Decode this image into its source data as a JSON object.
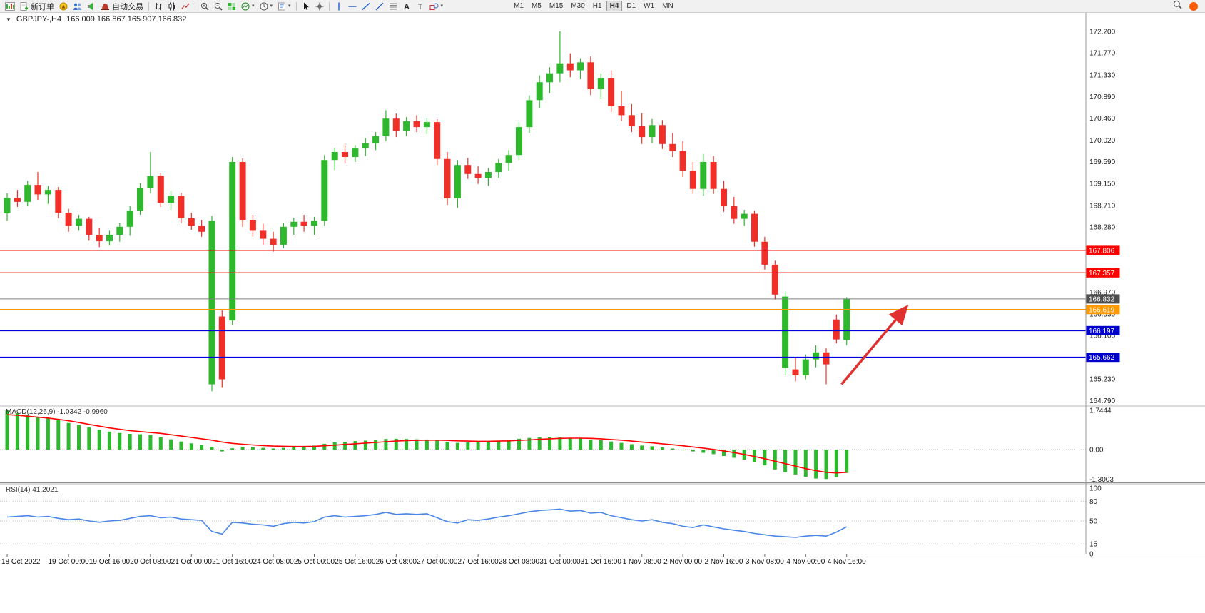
{
  "toolbar": {
    "buttons": [
      {
        "name": "charts-profile",
        "icon": "chart-icon",
        "label": ""
      },
      {
        "name": "new-order",
        "icon": "new-order-icon",
        "label": "新订单"
      },
      {
        "name": "navigator",
        "icon": "compass-icon",
        "label": ""
      },
      {
        "name": "market-watch",
        "icon": "users-icon",
        "label": ""
      },
      {
        "name": "terminal",
        "icon": "speaker-icon",
        "label": ""
      },
      {
        "name": "auto-trading",
        "icon": "auto-trading-icon",
        "label": "自动交易"
      },
      {
        "name": "sep"
      },
      {
        "name": "bar-chart-mode",
        "icon": "bars-icon",
        "label": ""
      },
      {
        "name": "candle-chart-mode",
        "icon": "candles-icon",
        "label": ""
      },
      {
        "name": "line-chart-mode",
        "icon": "line-chart-icon",
        "label": ""
      },
      {
        "name": "sep"
      },
      {
        "name": "zoom-in",
        "icon": "zoom-in-icon",
        "label": ""
      },
      {
        "name": "zoom-out",
        "icon": "zoom-out-icon",
        "label": ""
      },
      {
        "name": "tile-windows",
        "icon": "tile-icon",
        "label": ""
      },
      {
        "name": "indicators",
        "icon": "indicators-icon",
        "label": "",
        "caret": true
      },
      {
        "name": "periods",
        "icon": "clock-icon",
        "label": "",
        "caret": true
      },
      {
        "name": "templates",
        "icon": "template-icon",
        "label": "",
        "caret": true
      },
      {
        "name": "sep"
      },
      {
        "name": "cursor",
        "icon": "cursor-icon",
        "label": ""
      },
      {
        "name": "crosshair",
        "icon": "crosshair-icon",
        "label": ""
      },
      {
        "name": "sep"
      },
      {
        "name": "vertical-line",
        "icon": "vline-icon",
        "label": ""
      },
      {
        "name": "horizontal-line",
        "icon": "hline-icon",
        "label": ""
      },
      {
        "name": "trendline",
        "icon": "trendline-icon",
        "label": ""
      },
      {
        "name": "equidistant-channel",
        "icon": "channel-icon",
        "label": ""
      },
      {
        "name": "fibonacci",
        "icon": "fibo-icon",
        "label": ""
      },
      {
        "name": "text",
        "icon": "text-a-icon",
        "label": ""
      },
      {
        "name": "text-label",
        "icon": "text-t-icon",
        "label": ""
      },
      {
        "name": "arrows-shapes",
        "icon": "shapes-icon",
        "label": "",
        "caret": true
      }
    ],
    "timeframes": [
      {
        "label": "M1"
      },
      {
        "label": "M5"
      },
      {
        "label": "M15"
      },
      {
        "label": "M30"
      },
      {
        "label": "H1"
      },
      {
        "label": "H4",
        "active": true
      },
      {
        "label": "D1"
      },
      {
        "label": "W1"
      },
      {
        "label": "MN"
      }
    ],
    "notification_color": "#ff5a00"
  },
  "chart": {
    "symbol_period": "GBPJPY-,H4",
    "ohlc": "166.009 166.867 165.907 166.832",
    "macd_label": "MACD(12,26,9) -1.0342 -0.9960",
    "rsi_label": "RSI(14) 41.2021"
  },
  "chart_data": [
    {
      "type": "candlestick",
      "title": "GBPJPY-,H4",
      "timeframe": "H4",
      "current_ohlc": {
        "open": 166.009,
        "high": 166.867,
        "low": 165.907,
        "close": 166.832
      },
      "ylim": [
        164.62,
        172.57
      ],
      "colors": {
        "bull": "#2eb82e",
        "bear": "#f03028"
      },
      "y_ticks": [
        "172.200",
        "171.770",
        "171.330",
        "170.890",
        "170.460",
        "170.020",
        "169.590",
        "169.150",
        "168.710",
        "168.280",
        "167.840",
        "167.400",
        "166.970",
        "166.530",
        "166.100",
        "165.670",
        "165.230",
        "164.790"
      ],
      "x_tick_labels": [
        {
          "index": 0,
          "label": "18 Oct 2022"
        },
        {
          "index": 6,
          "label": "19 Oct 00:00"
        },
        {
          "index": 10,
          "label": "19 Oct 16:00"
        },
        {
          "index": 14,
          "label": "20 Oct 08:00"
        },
        {
          "index": 18,
          "label": "21 Oct 00:00"
        },
        {
          "index": 22,
          "label": "21 Oct 16:00"
        },
        {
          "index": 26,
          "label": "24 Oct 08:00"
        },
        {
          "index": 30,
          "label": "25 Oct 00:00"
        },
        {
          "index": 34,
          "label": "25 Oct 16:00"
        },
        {
          "index": 38,
          "label": "26 Oct 08:00"
        },
        {
          "index": 42,
          "label": "27 Oct 00:00"
        },
        {
          "index": 46,
          "label": "27 Oct 16:00"
        },
        {
          "index": 50,
          "label": "28 Oct 08:00"
        },
        {
          "index": 54,
          "label": "31 Oct 00:00"
        },
        {
          "index": 58,
          "label": "31 Oct 16:00"
        },
        {
          "index": 62,
          "label": "1 Nov 08:00"
        },
        {
          "index": 66,
          "label": "2 Nov 00:00"
        },
        {
          "index": 70,
          "label": "2 Nov 16:00"
        },
        {
          "index": 74,
          "label": "3 Nov 08:00"
        },
        {
          "index": 78,
          "label": "4 Nov 00:00"
        },
        {
          "index": 82,
          "label": "4 Nov 16:00"
        }
      ],
      "candles": [
        [
          168.55,
          168.95,
          168.4,
          168.86
        ],
        [
          168.86,
          169.02,
          168.68,
          168.78
        ],
        [
          168.78,
          169.2,
          168.7,
          169.12
        ],
        [
          169.12,
          169.38,
          168.82,
          168.93
        ],
        [
          168.93,
          169.1,
          168.74,
          169.02
        ],
        [
          169.02,
          169.08,
          168.45,
          168.56
        ],
        [
          168.56,
          168.64,
          168.18,
          168.3
        ],
        [
          168.3,
          168.52,
          168.2,
          168.44
        ],
        [
          168.44,
          168.48,
          168.0,
          168.12
        ],
        [
          168.12,
          168.25,
          167.87,
          167.99
        ],
        [
          167.99,
          168.2,
          167.9,
          168.12
        ],
        [
          168.12,
          168.36,
          167.98,
          168.28
        ],
        [
          168.28,
          168.7,
          168.1,
          168.6
        ],
        [
          168.6,
          169.15,
          168.52,
          169.05
        ],
        [
          169.05,
          169.78,
          168.95,
          169.3
        ],
        [
          169.3,
          169.36,
          168.68,
          168.76
        ],
        [
          168.76,
          169.0,
          168.62,
          168.9
        ],
        [
          168.9,
          168.96,
          168.35,
          168.45
        ],
        [
          168.45,
          168.56,
          168.22,
          168.3
        ],
        [
          168.3,
          168.42,
          168.08,
          168.18
        ],
        [
          165.12,
          168.5,
          164.98,
          168.4
        ],
        [
          166.48,
          166.6,
          165.05,
          165.22
        ],
        [
          166.4,
          169.68,
          166.3,
          169.58
        ],
        [
          169.58,
          169.65,
          168.28,
          168.42
        ],
        [
          168.42,
          168.52,
          168.08,
          168.2
        ],
        [
          168.2,
          168.34,
          167.92,
          168.04
        ],
        [
          168.04,
          168.18,
          167.78,
          167.92
        ],
        [
          167.92,
          168.36,
          167.85,
          168.28
        ],
        [
          168.28,
          168.46,
          168.12,
          168.38
        ],
        [
          168.38,
          168.52,
          168.18,
          168.3
        ],
        [
          168.3,
          168.48,
          168.12,
          168.4
        ],
        [
          168.4,
          169.72,
          168.3,
          169.62
        ],
        [
          169.62,
          169.86,
          169.42,
          169.78
        ],
        [
          169.78,
          169.95,
          169.55,
          169.68
        ],
        [
          169.68,
          169.92,
          169.58,
          169.85
        ],
        [
          169.85,
          170.06,
          169.7,
          169.96
        ],
        [
          169.96,
          170.18,
          169.82,
          170.1
        ],
        [
          170.1,
          170.62,
          170.0,
          170.45
        ],
        [
          170.45,
          170.55,
          170.08,
          170.2
        ],
        [
          170.2,
          170.48,
          170.1,
          170.4
        ],
        [
          170.4,
          170.52,
          170.18,
          170.28
        ],
        [
          170.28,
          170.46,
          170.14,
          170.38
        ],
        [
          170.38,
          170.44,
          169.52,
          169.64
        ],
        [
          169.64,
          169.78,
          168.72,
          168.85
        ],
        [
          168.85,
          169.62,
          168.66,
          169.52
        ],
        [
          169.52,
          169.66,
          169.24,
          169.34
        ],
        [
          169.34,
          169.5,
          169.14,
          169.26
        ],
        [
          169.26,
          169.46,
          169.1,
          169.38
        ],
        [
          169.38,
          169.64,
          169.26,
          169.56
        ],
        [
          169.56,
          169.82,
          169.4,
          169.72
        ],
        [
          169.72,
          170.38,
          169.62,
          170.28
        ],
        [
          170.28,
          170.92,
          170.16,
          170.82
        ],
        [
          170.82,
          171.32,
          170.66,
          171.18
        ],
        [
          171.18,
          171.48,
          170.96,
          171.36
        ],
        [
          171.36,
          172.2,
          171.18,
          171.56
        ],
        [
          171.56,
          171.76,
          171.28,
          171.42
        ],
        [
          171.42,
          171.66,
          171.24,
          171.58
        ],
        [
          171.58,
          171.7,
          170.92,
          171.04
        ],
        [
          171.04,
          171.36,
          170.84,
          171.26
        ],
        [
          171.26,
          171.42,
          170.58,
          170.7
        ],
        [
          170.7,
          171.0,
          170.4,
          170.52
        ],
        [
          170.52,
          170.74,
          170.18,
          170.3
        ],
        [
          170.3,
          170.56,
          169.94,
          170.08
        ],
        [
          170.08,
          170.44,
          169.96,
          170.32
        ],
        [
          170.32,
          170.42,
          169.84,
          169.94
        ],
        [
          169.94,
          170.16,
          169.68,
          169.8
        ],
        [
          169.8,
          170.0,
          169.28,
          169.4
        ],
        [
          169.4,
          169.58,
          168.94,
          169.04
        ],
        [
          169.04,
          169.74,
          168.9,
          169.58
        ],
        [
          169.58,
          169.7,
          168.94,
          169.04
        ],
        [
          169.04,
          169.2,
          168.58,
          168.7
        ],
        [
          168.7,
          168.88,
          168.34,
          168.44
        ],
        [
          168.44,
          168.62,
          168.3,
          168.54
        ],
        [
          168.54,
          168.6,
          167.88,
          167.98
        ],
        [
          167.98,
          168.08,
          167.42,
          167.52
        ],
        [
          167.52,
          167.6,
          166.82,
          166.92
        ],
        [
          165.45,
          166.98,
          165.3,
          166.88
        ],
        [
          165.42,
          165.66,
          165.18,
          165.3
        ],
        [
          165.3,
          165.72,
          165.22,
          165.62
        ],
        [
          165.62,
          165.9,
          165.46,
          165.76
        ],
        [
          165.76,
          165.84,
          165.12,
          165.52
        ],
        [
          166.42,
          166.52,
          165.94,
          166.02
        ],
        [
          166.009,
          166.867,
          165.907,
          166.832
        ]
      ],
      "hlines": [
        {
          "price": 167.806,
          "color": "#ff0000",
          "width": 1.3,
          "label": "167.806",
          "label_bg": "#ff0000"
        },
        {
          "price": 167.357,
          "color": "#ff0000",
          "width": 1.3,
          "label": "167.357",
          "label_bg": "#ff0000"
        },
        {
          "price": 166.619,
          "color": "#ff9900",
          "width": 1.6,
          "label": "166.619",
          "label_bg": "#ff9900"
        },
        {
          "price": 166.197,
          "color": "#0000dd",
          "width": 1.6,
          "label": "166.197",
          "label_bg": "#0000cc"
        },
        {
          "price": 165.662,
          "color": "#0000dd",
          "width": 1.6,
          "label": "165.662",
          "label_bg": "#0000cc"
        },
        {
          "price": 166.832,
          "color": "#808080",
          "width": 1,
          "label": "166.832",
          "label_bg": "#4d4d4d"
        }
      ],
      "arrow": {
        "from_index": 81.5,
        "from_price": 165.12,
        "to_index": 87.8,
        "to_price": 166.66,
        "color": "#e03030",
        "width": 3.5
      }
    },
    {
      "type": "bar",
      "title": "MACD(12,26,9)",
      "value_main": -1.0342,
      "value_signal": -0.996,
      "ylim": [
        -1.45,
        1.9
      ],
      "y_ticks": [
        "1.7444",
        "0.00",
        "-1.3003"
      ],
      "hist_color": "#2eb82e",
      "signal_color": "#ff0000",
      "histogram": [
        1.74,
        1.62,
        1.52,
        1.46,
        1.4,
        1.3,
        1.18,
        1.1,
        0.98,
        0.88,
        0.8,
        0.74,
        0.7,
        0.68,
        0.64,
        0.55,
        0.46,
        0.36,
        0.28,
        0.2,
        0.12,
        -0.08,
        0.06,
        0.12,
        0.1,
        0.08,
        0.05,
        0.08,
        0.12,
        0.15,
        0.18,
        0.26,
        0.32,
        0.35,
        0.38,
        0.4,
        0.43,
        0.47,
        0.48,
        0.47,
        0.46,
        0.45,
        0.42,
        0.35,
        0.3,
        0.32,
        0.34,
        0.36,
        0.4,
        0.44,
        0.48,
        0.52,
        0.55,
        0.56,
        0.55,
        0.52,
        0.5,
        0.45,
        0.42,
        0.36,
        0.3,
        0.24,
        0.18,
        0.15,
        0.1,
        0.05,
        -0.02,
        -0.08,
        -0.14,
        -0.2,
        -0.28,
        -0.36,
        -0.44,
        -0.56,
        -0.7,
        -0.88,
        -1.0,
        -1.1,
        -1.2,
        -1.28,
        -1.3,
        -1.22,
        -1.03
      ],
      "signal": [
        1.55,
        1.52,
        1.48,
        1.44,
        1.4,
        1.34,
        1.28,
        1.2,
        1.12,
        1.04,
        0.96,
        0.9,
        0.84,
        0.8,
        0.76,
        0.72,
        0.66,
        0.6,
        0.54,
        0.48,
        0.42,
        0.34,
        0.28,
        0.24,
        0.21,
        0.18,
        0.16,
        0.15,
        0.14,
        0.14,
        0.15,
        0.17,
        0.2,
        0.23,
        0.26,
        0.29,
        0.32,
        0.35,
        0.38,
        0.4,
        0.41,
        0.42,
        0.42,
        0.41,
        0.39,
        0.38,
        0.37,
        0.37,
        0.38,
        0.39,
        0.41,
        0.43,
        0.46,
        0.48,
        0.5,
        0.51,
        0.51,
        0.5,
        0.48,
        0.45,
        0.42,
        0.38,
        0.34,
        0.3,
        0.26,
        0.22,
        0.17,
        0.12,
        0.07,
        0.01,
        -0.06,
        -0.13,
        -0.21,
        -0.3,
        -0.4,
        -0.51,
        -0.62,
        -0.73,
        -0.84,
        -0.93,
        -1.0,
        -1.03,
        -1.0
      ]
    },
    {
      "type": "line",
      "title": "RSI(14)",
      "value": 41.2021,
      "ylim": [
        0,
        100
      ],
      "y_ticks": [
        "100",
        "80",
        "50",
        "15",
        "0"
      ],
      "levels": [
        80,
        50,
        15
      ],
      "color": "#4a86e8",
      "values": [
        56,
        57,
        58,
        56,
        57,
        54,
        52,
        53,
        50,
        48,
        50,
        51,
        54,
        57,
        58,
        55,
        56,
        53,
        52,
        51,
        34,
        30,
        48,
        47,
        45,
        44,
        42,
        46,
        48,
        47,
        49,
        56,
        58,
        56,
        57,
        58,
        60,
        63,
        60,
        61,
        60,
        61,
        55,
        49,
        47,
        52,
        51,
        53,
        56,
        58,
        61,
        64,
        66,
        67,
        68,
        65,
        66,
        62,
        63,
        58,
        55,
        52,
        50,
        52,
        48,
        46,
        42,
        40,
        44,
        41,
        38,
        36,
        34,
        31,
        29,
        27,
        26,
        25,
        27,
        28,
        27,
        33,
        41.2
      ]
    }
  ]
}
